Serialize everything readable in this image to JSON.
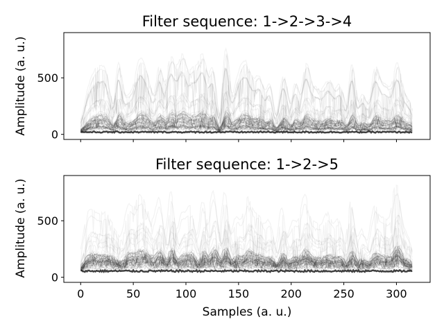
{
  "chart_data": [
    {
      "type": "line",
      "title": "Filter sequence: 1->2->3->4",
      "xlabel": "",
      "ylabel": "Amplitude (a. u.)",
      "xlim": [
        -16,
        332
      ],
      "ylim": [
        -45,
        900
      ],
      "x_ticks": [
        0,
        50,
        100,
        150,
        200,
        250,
        300
      ],
      "x_tick_labels_shown": false,
      "y_ticks": [
        0,
        500
      ],
      "y_tick_labels": [
        "0",
        "500"
      ],
      "x_range": [
        0,
        315
      ],
      "baseline_level": 20,
      "baseline_noise": 15,
      "peaks": [
        {
          "x": 8,
          "height": 350
        },
        {
          "x": 17,
          "height": 500
        },
        {
          "x": 25,
          "height": 420
        },
        {
          "x": 36,
          "height": 560
        },
        {
          "x": 44,
          "height": 300
        },
        {
          "x": 56,
          "height": 600
        },
        {
          "x": 65,
          "height": 380
        },
        {
          "x": 75,
          "height": 520
        },
        {
          "x": 86,
          "height": 700
        },
        {
          "x": 97,
          "height": 650
        },
        {
          "x": 106,
          "height": 460
        },
        {
          "x": 116,
          "height": 720
        },
        {
          "x": 126,
          "height": 500
        },
        {
          "x": 138,
          "height": 760
        },
        {
          "x": 149,
          "height": 420
        },
        {
          "x": 158,
          "height": 560
        },
        {
          "x": 170,
          "height": 500
        },
        {
          "x": 180,
          "height": 380
        },
        {
          "x": 193,
          "height": 540
        },
        {
          "x": 204,
          "height": 440
        },
        {
          "x": 214,
          "height": 600
        },
        {
          "x": 224,
          "height": 380
        },
        {
          "x": 236,
          "height": 480
        },
        {
          "x": 247,
          "height": 400
        },
        {
          "x": 258,
          "height": 620
        },
        {
          "x": 268,
          "height": 350
        },
        {
          "x": 280,
          "height": 560
        },
        {
          "x": 290,
          "height": 420
        },
        {
          "x": 301,
          "height": 580
        },
        {
          "x": 311,
          "height": 300
        }
      ],
      "color": "#000000"
    },
    {
      "type": "line",
      "title": "Filter sequence: 1->2->5",
      "xlabel": "Samples (a. u.)",
      "ylabel": "Amplitude (a. u.)",
      "xlim": [
        -16,
        332
      ],
      "ylim": [
        -45,
        900
      ],
      "x_ticks": [
        0,
        50,
        100,
        150,
        200,
        250,
        300
      ],
      "x_tick_labels": [
        "0",
        "50",
        "100",
        "150",
        "200",
        "250",
        "300"
      ],
      "y_ticks": [
        0,
        500
      ],
      "y_tick_labels": [
        "0",
        "500"
      ],
      "x_range": [
        0,
        315
      ],
      "baseline_level": 55,
      "baseline_noise": 20,
      "peaks": [
        {
          "x": 8,
          "height": 520
        },
        {
          "x": 17,
          "height": 400
        },
        {
          "x": 26,
          "height": 460
        },
        {
          "x": 35,
          "height": 300
        },
        {
          "x": 46,
          "height": 560
        },
        {
          "x": 56,
          "height": 640
        },
        {
          "x": 65,
          "height": 480
        },
        {
          "x": 76,
          "height": 700
        },
        {
          "x": 87,
          "height": 780
        },
        {
          "x": 97,
          "height": 540
        },
        {
          "x": 106,
          "height": 620
        },
        {
          "x": 117,
          "height": 680
        },
        {
          "x": 127,
          "height": 820
        },
        {
          "x": 138,
          "height": 760
        },
        {
          "x": 149,
          "height": 540
        },
        {
          "x": 160,
          "height": 640
        },
        {
          "x": 170,
          "height": 560
        },
        {
          "x": 181,
          "height": 460
        },
        {
          "x": 192,
          "height": 600
        },
        {
          "x": 203,
          "height": 500
        },
        {
          "x": 214,
          "height": 680
        },
        {
          "x": 224,
          "height": 440
        },
        {
          "x": 236,
          "height": 560
        },
        {
          "x": 247,
          "height": 480
        },
        {
          "x": 258,
          "height": 700
        },
        {
          "x": 268,
          "height": 420
        },
        {
          "x": 280,
          "height": 600
        },
        {
          "x": 290,
          "height": 500
        },
        {
          "x": 301,
          "height": 820
        },
        {
          "x": 311,
          "height": 360
        }
      ],
      "color": "#000000"
    }
  ]
}
